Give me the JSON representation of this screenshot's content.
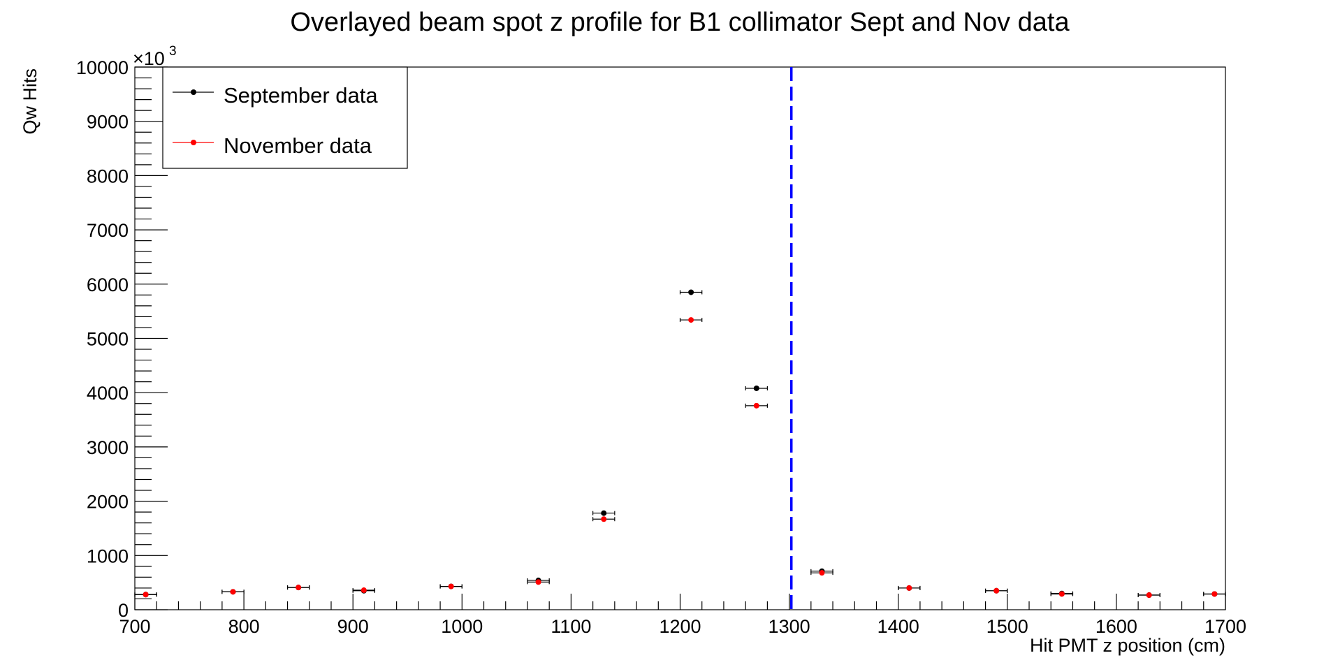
{
  "chart_data": {
    "type": "scatter",
    "title": "Overlayed beam spot z profile for B1 collimator Sept and Nov data",
    "xlabel": "Hit PMT z position (cm)",
    "ylabel": "Qw Hits",
    "y_multiplier_label": "×10",
    "y_multiplier_exponent": "3",
    "xlim": [
      700,
      1700
    ],
    "ylim": [
      0,
      10000
    ],
    "x_ticks": [
      700,
      800,
      900,
      1000,
      1100,
      1200,
      1300,
      1400,
      1500,
      1600,
      1700
    ],
    "y_ticks": [
      0,
      1000,
      2000,
      3000,
      4000,
      5000,
      6000,
      7000,
      8000,
      9000,
      10000
    ],
    "x_tick_labels": [
      "700",
      "800",
      "900",
      "1000",
      "1100",
      "1200",
      "1300",
      "1400",
      "1500",
      "1600",
      "1700"
    ],
    "y_tick_labels": [
      "0",
      "1000",
      "2000",
      "3000",
      "4000",
      "5000",
      "6000",
      "7000",
      "8000",
      "9000",
      "10000"
    ],
    "grid": false,
    "legend_position": "top-left",
    "cut_line": {
      "x": 1302,
      "color": "#0000ff",
      "style": "dashed"
    },
    "series": [
      {
        "name": "September data",
        "color": "#000000",
        "points": [
          {
            "x": 710,
            "y": 280,
            "xerr": 10
          },
          {
            "x": 790,
            "y": 330,
            "xerr": 10
          },
          {
            "x": 850,
            "y": 410,
            "xerr": 10
          },
          {
            "x": 910,
            "y": 350,
            "xerr": 10
          },
          {
            "x": 990,
            "y": 430,
            "xerr": 10
          },
          {
            "x": 1070,
            "y": 540,
            "xerr": 10
          },
          {
            "x": 1130,
            "y": 1780,
            "xerr": 10
          },
          {
            "x": 1210,
            "y": 5850,
            "xerr": 10
          },
          {
            "x": 1270,
            "y": 4080,
            "xerr": 10
          },
          {
            "x": 1330,
            "y": 710,
            "xerr": 10
          },
          {
            "x": 1410,
            "y": 400,
            "xerr": 10
          },
          {
            "x": 1490,
            "y": 350,
            "xerr": 10
          },
          {
            "x": 1550,
            "y": 300,
            "xerr": 10
          },
          {
            "x": 1630,
            "y": 270,
            "xerr": 10
          },
          {
            "x": 1690,
            "y": 290,
            "xerr": 10
          }
        ]
      },
      {
        "name": "November data",
        "color": "#ff0000",
        "points": [
          {
            "x": 710,
            "y": 280,
            "xerr": 10
          },
          {
            "x": 790,
            "y": 330,
            "xerr": 10
          },
          {
            "x": 850,
            "y": 410,
            "xerr": 10
          },
          {
            "x": 910,
            "y": 360,
            "xerr": 10
          },
          {
            "x": 990,
            "y": 430,
            "xerr": 10
          },
          {
            "x": 1070,
            "y": 510,
            "xerr": 10
          },
          {
            "x": 1130,
            "y": 1670,
            "xerr": 10
          },
          {
            "x": 1210,
            "y": 5340,
            "xerr": 10
          },
          {
            "x": 1270,
            "y": 3760,
            "xerr": 10
          },
          {
            "x": 1330,
            "y": 680,
            "xerr": 10
          },
          {
            "x": 1410,
            "y": 400,
            "xerr": 10
          },
          {
            "x": 1490,
            "y": 350,
            "xerr": 10
          },
          {
            "x": 1550,
            "y": 290,
            "xerr": 10
          },
          {
            "x": 1630,
            "y": 270,
            "xerr": 10
          },
          {
            "x": 1690,
            "y": 290,
            "xerr": 10
          }
        ]
      }
    ]
  }
}
